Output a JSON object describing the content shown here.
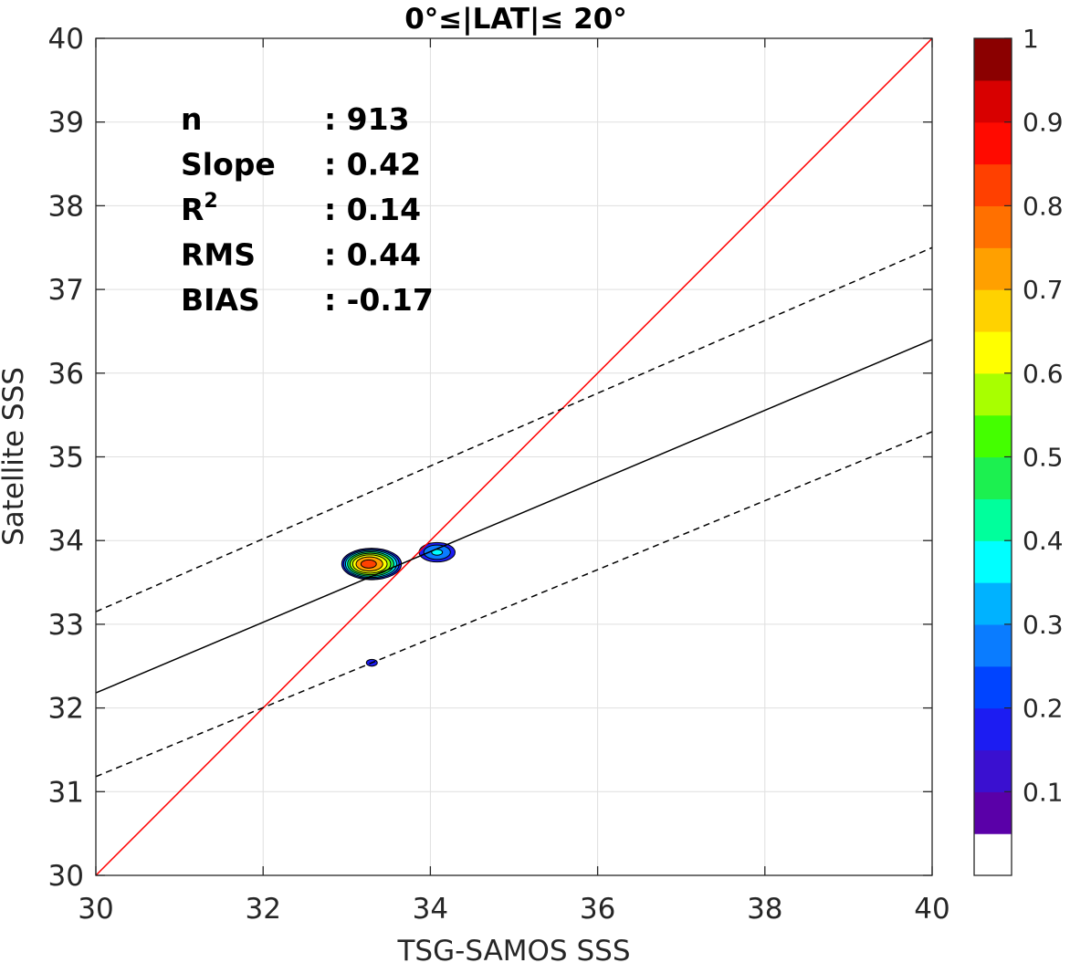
{
  "chart_data": {
    "type": "scatter",
    "title": "0°≤|LAT|≤ 20°",
    "xlabel": "TSG-SAMOS SSS",
    "ylabel": "Satellite SSS",
    "xlim": [
      30,
      40
    ],
    "ylim": [
      30,
      40
    ],
    "x_ticks": [
      "30",
      "32",
      "34",
      "36",
      "38",
      "40"
    ],
    "y_ticks": [
      "30",
      "31",
      "32",
      "33",
      "34",
      "35",
      "36",
      "37",
      "38",
      "39",
      "40"
    ],
    "grid": true,
    "stats": [
      {
        "label": "n",
        "sep": ":",
        "value": "913"
      },
      {
        "label": "Slope",
        "sep": ":",
        "value": "0.42"
      },
      {
        "label": "R",
        "sup": "2",
        "sep": ":",
        "value": "0.14"
      },
      {
        "label": "RMS",
        "sep": ":",
        "value": "0.44"
      },
      {
        "label": "BIAS",
        "sep": ":",
        "value": "-0.17"
      }
    ],
    "lines": [
      {
        "name": "1:1",
        "color": "#ff0000",
        "style": "solid",
        "points": [
          [
            30,
            30
          ],
          [
            40,
            40
          ]
        ]
      },
      {
        "name": "fit",
        "color": "#000000",
        "style": "solid",
        "points": [
          [
            30,
            32.18
          ],
          [
            40,
            36.4
          ]
        ]
      },
      {
        "name": "fit+",
        "color": "#000000",
        "style": "dashed",
        "points": [
          [
            30,
            33.15
          ],
          [
            40,
            37.5
          ]
        ]
      },
      {
        "name": "fit-",
        "color": "#000000",
        "style": "dashed",
        "points": [
          [
            30,
            31.18
          ],
          [
            40,
            35.3
          ]
        ]
      }
    ],
    "density_peaks": [
      {
        "x": 33.3,
        "y": 33.72,
        "peak": 0.85
      },
      {
        "x": 34.08,
        "y": 33.86,
        "peak": 0.32
      },
      {
        "x": 33.3,
        "y": 32.54,
        "peak": 0.12
      }
    ],
    "colorbar": {
      "ticks": [
        "0.1",
        "0.2",
        "0.3",
        "0.4",
        "0.5",
        "0.6",
        "0.7",
        "0.8",
        "0.9",
        "1"
      ],
      "tick_values": [
        0.1,
        0.2,
        0.3,
        0.4,
        0.5,
        0.6,
        0.7,
        0.8,
        0.9,
        1.0
      ],
      "range": [
        0,
        1
      ],
      "colors": [
        "#ffffff",
        "#5a00a8",
        "#3a10d0",
        "#1c1cf2",
        "#0044ff",
        "#0a7cff",
        "#00b2ff",
        "#00ffff",
        "#00ff9c",
        "#1cf050",
        "#44ff00",
        "#a8ff00",
        "#ffff00",
        "#ffd200",
        "#ffa000",
        "#ff7000",
        "#ff4000",
        "#ff0a00",
        "#d80000",
        "#8b0000"
      ]
    }
  }
}
